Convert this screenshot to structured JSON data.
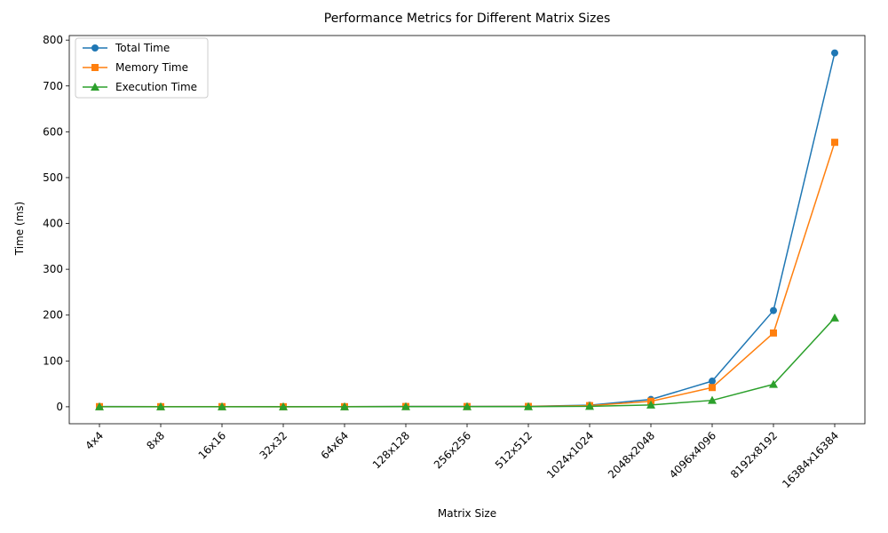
{
  "chart_data": {
    "type": "line",
    "title": "Performance Metrics for Different Matrix Sizes",
    "xlabel": "Matrix Size",
    "ylabel": "Time (ms)",
    "categories": [
      "4x4",
      "8x8",
      "16x16",
      "32x32",
      "64x64",
      "128x128",
      "256x256",
      "512x512",
      "1024x1024",
      "2048x2048",
      "4096x4096",
      "8192x8192",
      "16384x16384"
    ],
    "ylim": [
      -37,
      810
    ],
    "yticks": [
      0,
      100,
      200,
      300,
      400,
      500,
      600,
      700,
      800
    ],
    "grid": false,
    "legend_position": "top-left",
    "series": [
      {
        "name": "Total Time",
        "color": "#1f77b4",
        "marker": "circle",
        "values": [
          0.5,
          0.3,
          0.4,
          0.2,
          0.3,
          0.8,
          0.8,
          1.0,
          3.5,
          16,
          56,
          210,
          772
        ]
      },
      {
        "name": "Memory Time",
        "color": "#ff7f0e",
        "marker": "square",
        "values": [
          0.3,
          0.2,
          0.3,
          0.1,
          0.2,
          0.6,
          0.5,
          0.7,
          2.5,
          12,
          42,
          161,
          577
        ]
      },
      {
        "name": "Execution Time",
        "color": "#2ca02c",
        "marker": "triangle",
        "values": [
          0.1,
          0.1,
          0.1,
          0.1,
          0.1,
          0.2,
          0.2,
          0.3,
          1.0,
          4,
          14,
          49,
          194
        ]
      }
    ]
  }
}
